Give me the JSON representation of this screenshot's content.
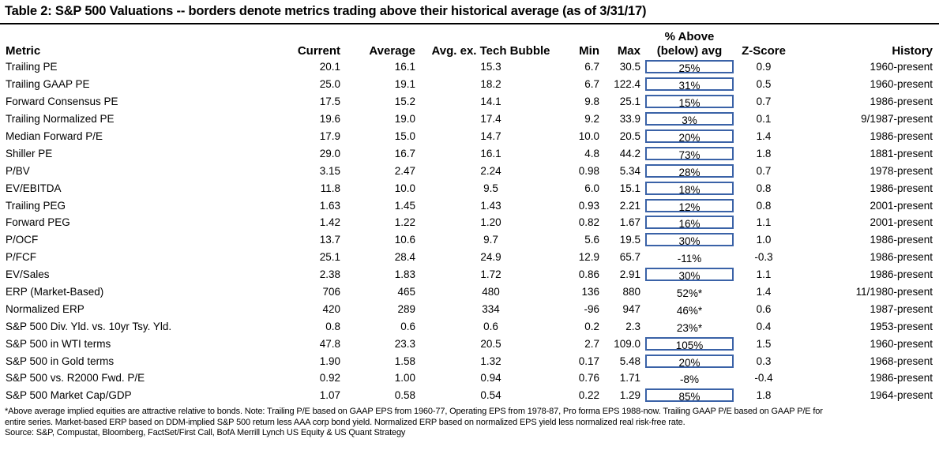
{
  "title": "Table 2: S&P 500 Valuations -- borders denote metrics trading above their historical average (as of 3/31/17)",
  "columns": {
    "metric": "Metric",
    "current": "Current",
    "average": "Average",
    "avg_ex_tech": "Avg. ex. Tech Bubble",
    "min": "Min",
    "max": "Max",
    "pct_line1": "% Above",
    "pct_line2": "(below) avg",
    "zscore": "Z-Score",
    "history": "History"
  },
  "rows": [
    {
      "metric": "Trailing PE",
      "current": "20.1",
      "average": "16.1",
      "avg_ex_tech": "15.3",
      "min": "6.7",
      "max": "30.5",
      "pct": "25%",
      "boxed": true,
      "zscore": "0.9",
      "history": "1960-present"
    },
    {
      "metric": "Trailing GAAP PE",
      "current": "25.0",
      "average": "19.1",
      "avg_ex_tech": "18.2",
      "min": "6.7",
      "max": "122.4",
      "pct": "31%",
      "boxed": true,
      "zscore": "0.5",
      "history": "1960-present"
    },
    {
      "metric": "Forward Consensus PE",
      "current": "17.5",
      "average": "15.2",
      "avg_ex_tech": "14.1",
      "min": "9.8",
      "max": "25.1",
      "pct": "15%",
      "boxed": true,
      "zscore": "0.7",
      "history": "1986-present"
    },
    {
      "metric": "Trailing Normalized PE",
      "current": "19.6",
      "average": "19.0",
      "avg_ex_tech": "17.4",
      "min": "9.2",
      "max": "33.9",
      "pct": "3%",
      "boxed": true,
      "zscore": "0.1",
      "history": "9/1987-present"
    },
    {
      "metric": "Median Forward P/E",
      "current": "17.9",
      "average": "15.0",
      "avg_ex_tech": "14.7",
      "min": "10.0",
      "max": "20.5",
      "pct": "20%",
      "boxed": true,
      "zscore": "1.4",
      "history": "1986-present"
    },
    {
      "metric": "Shiller PE",
      "current": "29.0",
      "average": "16.7",
      "avg_ex_tech": "16.1",
      "min": "4.8",
      "max": "44.2",
      "pct": "73%",
      "boxed": true,
      "zscore": "1.8",
      "history": "1881-present"
    },
    {
      "metric": "P/BV",
      "current": "3.15",
      "average": "2.47",
      "avg_ex_tech": "2.24",
      "min": "0.98",
      "max": "5.34",
      "pct": "28%",
      "boxed": true,
      "zscore": "0.7",
      "history": "1978-present"
    },
    {
      "metric": "EV/EBITDA",
      "current": "11.8",
      "average": "10.0",
      "avg_ex_tech": "9.5",
      "min": "6.0",
      "max": "15.1",
      "pct": "18%",
      "boxed": true,
      "zscore": "0.8",
      "history": "1986-present"
    },
    {
      "metric": "Trailing PEG",
      "current": "1.63",
      "average": "1.45",
      "avg_ex_tech": "1.43",
      "min": "0.93",
      "max": "2.21",
      "pct": "12%",
      "boxed": true,
      "zscore": "0.8",
      "history": "2001-present"
    },
    {
      "metric": "Forward PEG",
      "current": "1.42",
      "average": "1.22",
      "avg_ex_tech": "1.20",
      "min": "0.82",
      "max": "1.67",
      "pct": "16%",
      "boxed": true,
      "zscore": "1.1",
      "history": "2001-present"
    },
    {
      "metric": "P/OCF",
      "current": "13.7",
      "average": "10.6",
      "avg_ex_tech": "9.7",
      "min": "5.6",
      "max": "19.5",
      "pct": "30%",
      "boxed": true,
      "zscore": "1.0",
      "history": "1986-present"
    },
    {
      "metric": "P/FCF",
      "current": "25.1",
      "average": "28.4",
      "avg_ex_tech": "24.9",
      "min": "12.9",
      "max": "65.7",
      "pct": "-11%",
      "boxed": false,
      "zscore": "-0.3",
      "history": "1986-present"
    },
    {
      "metric": "EV/Sales",
      "current": "2.38",
      "average": "1.83",
      "avg_ex_tech": "1.72",
      "min": "0.86",
      "max": "2.91",
      "pct": "30%",
      "boxed": true,
      "zscore": "1.1",
      "history": "1986-present"
    },
    {
      "metric": "ERP (Market-Based)",
      "current": "706",
      "average": "465",
      "avg_ex_tech": "480",
      "min": "136",
      "max": "880",
      "pct": "52%*",
      "boxed": false,
      "zscore": "1.4",
      "history": "11/1980-present"
    },
    {
      "metric": "Normalized ERP",
      "current": "420",
      "average": "289",
      "avg_ex_tech": "334",
      "min": "-96",
      "max": "947",
      "pct": "46%*",
      "boxed": false,
      "zscore": "0.6",
      "history": "1987-present"
    },
    {
      "metric": "S&P 500 Div. Yld. vs. 10yr Tsy. Yld.",
      "current": "0.8",
      "average": "0.6",
      "avg_ex_tech": "0.6",
      "min": "0.2",
      "max": "2.3",
      "pct": "23%*",
      "boxed": false,
      "zscore": "0.4",
      "history": "1953-present"
    },
    {
      "metric": "S&P 500 in WTI terms",
      "current": "47.8",
      "average": "23.3",
      "avg_ex_tech": "20.5",
      "min": "2.7",
      "max": "109.0",
      "pct": "105%",
      "boxed": true,
      "zscore": "1.5",
      "history": "1960-present"
    },
    {
      "metric": "S&P 500 in Gold terms",
      "current": "1.90",
      "average": "1.58",
      "avg_ex_tech": "1.32",
      "min": "0.17",
      "max": "5.48",
      "pct": "20%",
      "boxed": true,
      "zscore": "0.3",
      "history": "1968-present"
    },
    {
      "metric": "S&P 500 vs. R2000 Fwd. P/E",
      "current": "0.92",
      "average": "1.00",
      "avg_ex_tech": "0.94",
      "min": "0.76",
      "max": "1.71",
      "pct": "-8%",
      "boxed": false,
      "zscore": "-0.4",
      "history": "1986-present"
    },
    {
      "metric": "S&P 500 Market Cap/GDP",
      "current": "1.07",
      "average": "0.58",
      "avg_ex_tech": "0.54",
      "min": "0.22",
      "max": "1.29",
      "pct": "85%",
      "boxed": true,
      "zscore": "1.8",
      "history": "1964-present"
    }
  ],
  "notes": {
    "line1": "*Above average implied equities are attractive relative to bonds.  Note: Trailing P/E based on GAAP EPS from 1960-77, Operating EPS from 1978-87, Pro forma EPS 1988-now. Trailing GAAP P/E based on GAAP P/E for",
    "line2": "entire series. Market-based ERP based on DDM-implied S&P 500 return less AAA corp bond yield. Normalized ERP based on normalized EPS yield less normalized real risk-free rate.",
    "source": "Source: S&P, Compustat, Bloomberg, FactSet/First Call, BofA Merrill Lynch US Equity & US Quant Strategy"
  },
  "colors": {
    "box_border": "#3a62a7",
    "text": "#000000",
    "background": "#ffffff"
  }
}
